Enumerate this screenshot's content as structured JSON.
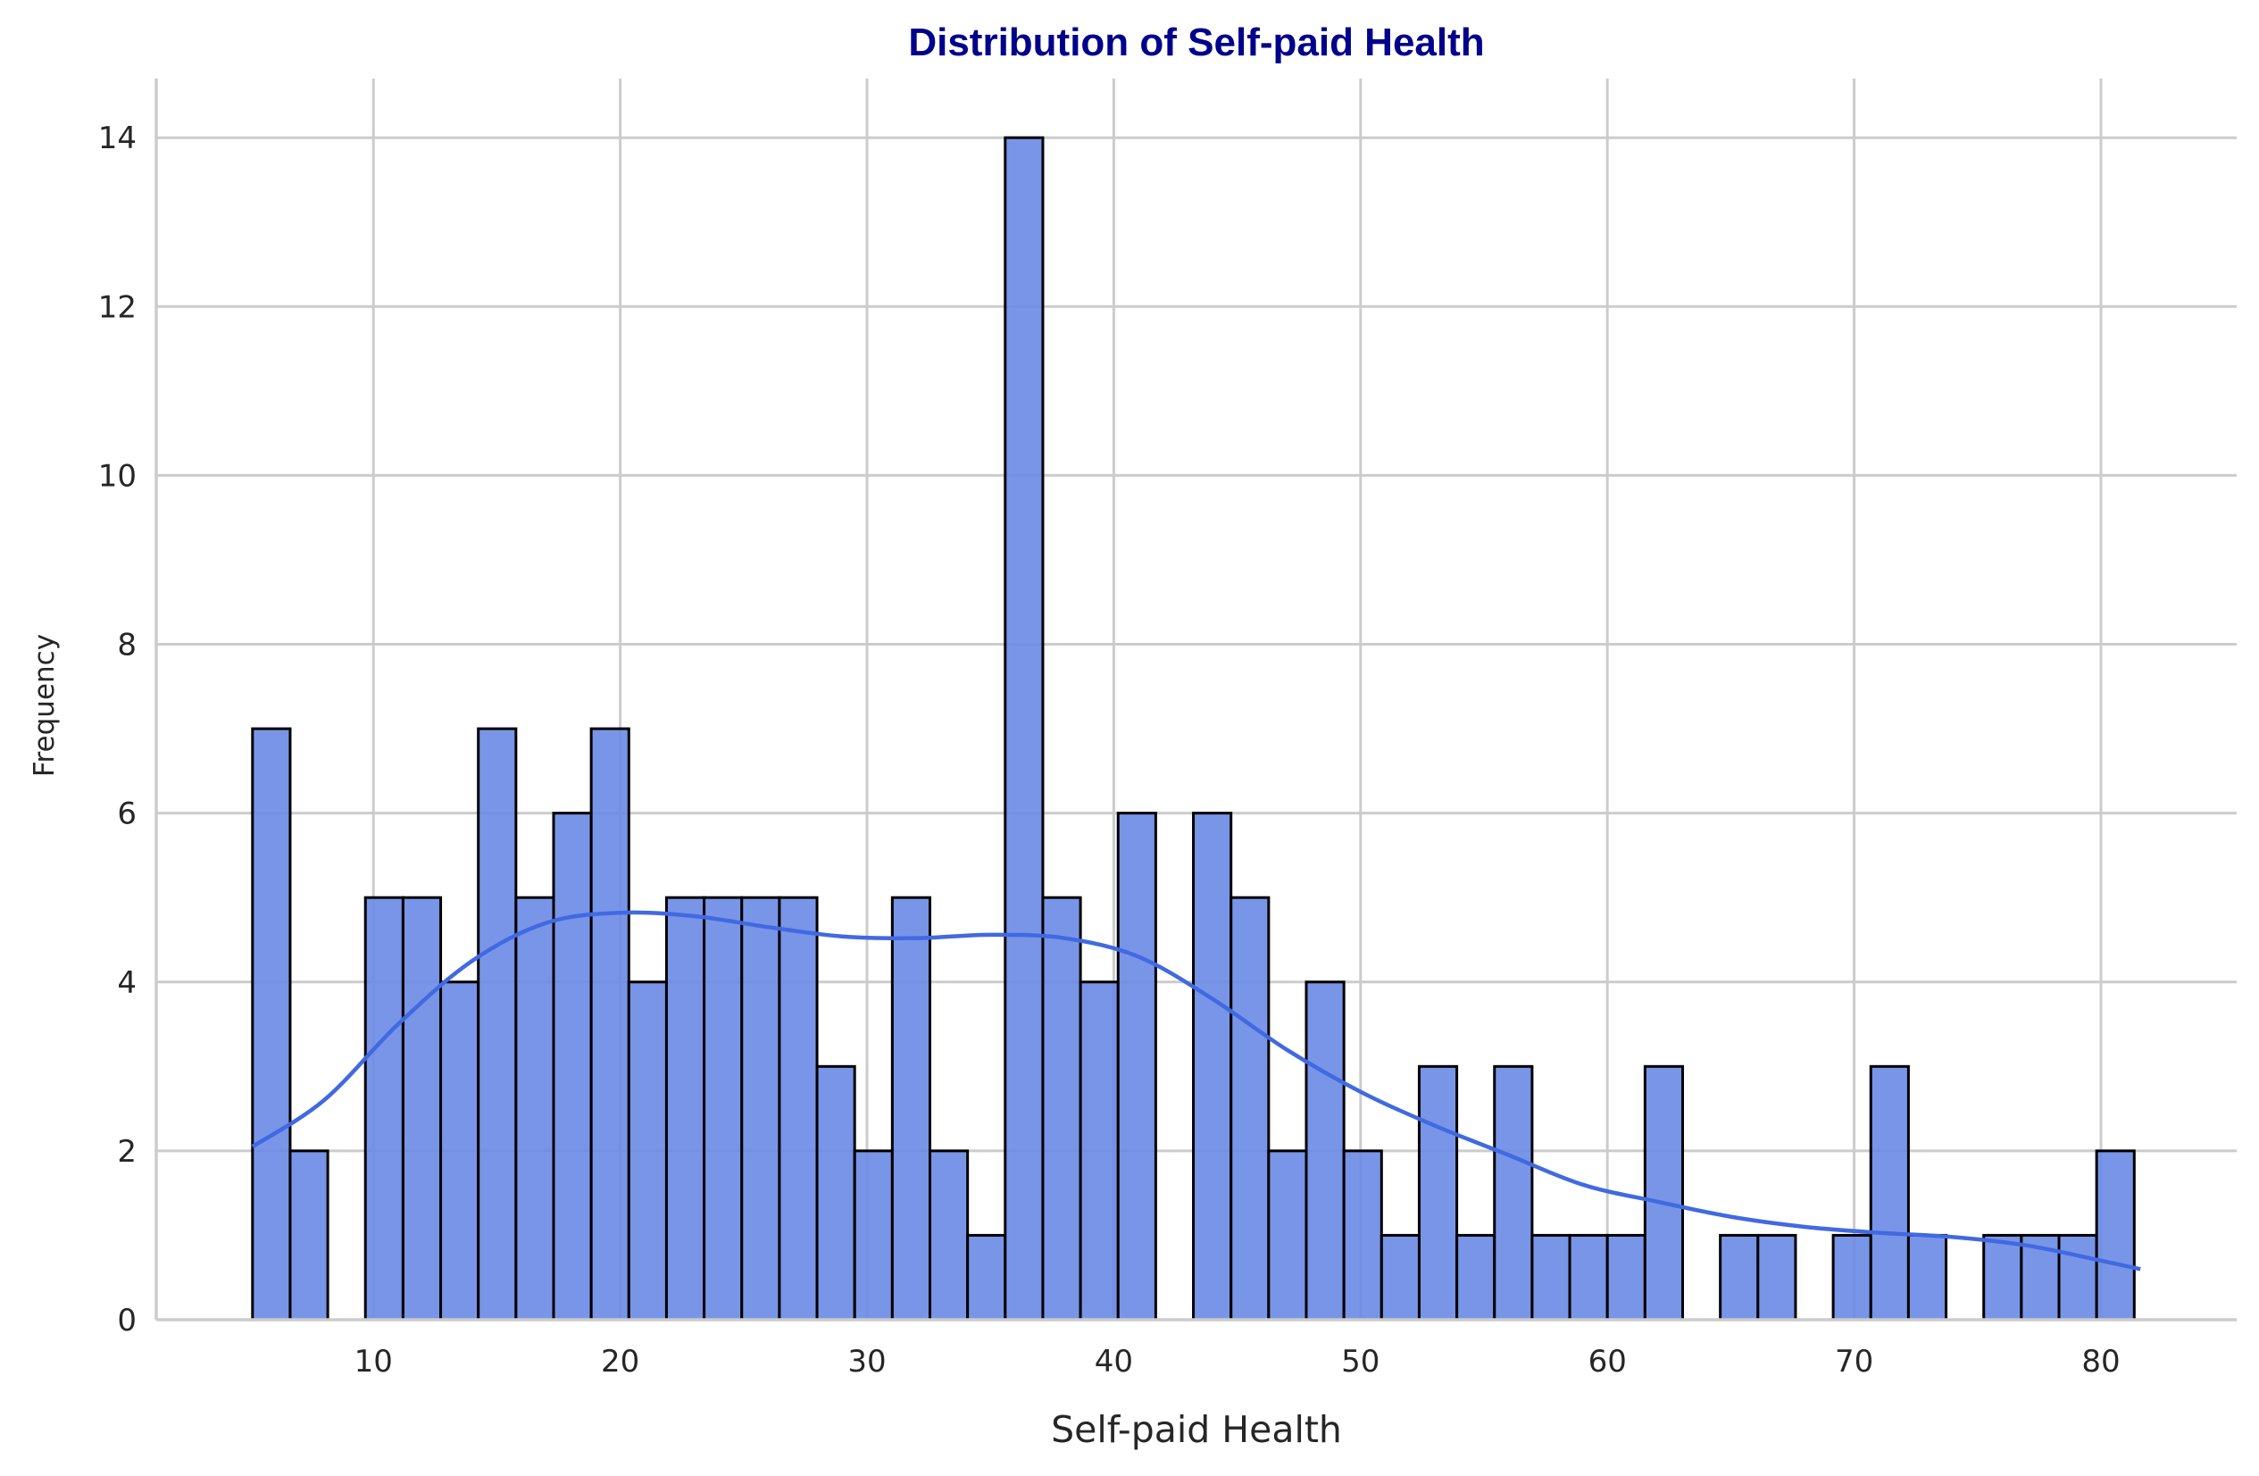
{
  "chart_data": {
    "type": "bar",
    "subtype": "histogram with density curve",
    "title": "Distribution of Self-paid Health",
    "xlabel": "Self-paid Health",
    "ylabel": "Frequency",
    "xlim": [
      1.2,
      85.5
    ],
    "ylim": [
      0,
      14.7
    ],
    "xticks": [
      10,
      20,
      30,
      40,
      50,
      60,
      70,
      80
    ],
    "yticks": [
      0,
      2,
      4,
      6,
      8,
      10,
      12,
      14
    ],
    "grid": true,
    "bin_start": 5.1,
    "bin_width": 1.525,
    "values": [
      7,
      2,
      0,
      5,
      5,
      4,
      7,
      5,
      6,
      7,
      4,
      5,
      5,
      5,
      5,
      3,
      2,
      5,
      2,
      1,
      14,
      5,
      4,
      6,
      0,
      6,
      5,
      2,
      4,
      2,
      1,
      3,
      1,
      3,
      1,
      1,
      1,
      3,
      0,
      1,
      1,
      0,
      1,
      3,
      1,
      0,
      1,
      1,
      1,
      2
    ],
    "kde": {
      "x": [
        5.1,
        8,
        11,
        14,
        17,
        20,
        23,
        26,
        29,
        32,
        35,
        38,
        41,
        44,
        47,
        50,
        53,
        56,
        59,
        62,
        65,
        68,
        71,
        74,
        77,
        80,
        81.6
      ],
      "y": [
        2.05,
        2.6,
        3.5,
        4.25,
        4.7,
        4.82,
        4.78,
        4.65,
        4.54,
        4.52,
        4.56,
        4.52,
        4.3,
        3.8,
        3.2,
        2.7,
        2.3,
        1.95,
        1.6,
        1.4,
        1.22,
        1.1,
        1.03,
        0.98,
        0.88,
        0.7,
        0.6
      ]
    },
    "colors": {
      "bar_fill": "#6a89e6",
      "bar_edge": "#000000",
      "kde_line": "#4169e1",
      "title": "#00008b",
      "grid": "#cccccc",
      "axis": "#cccccc"
    }
  }
}
